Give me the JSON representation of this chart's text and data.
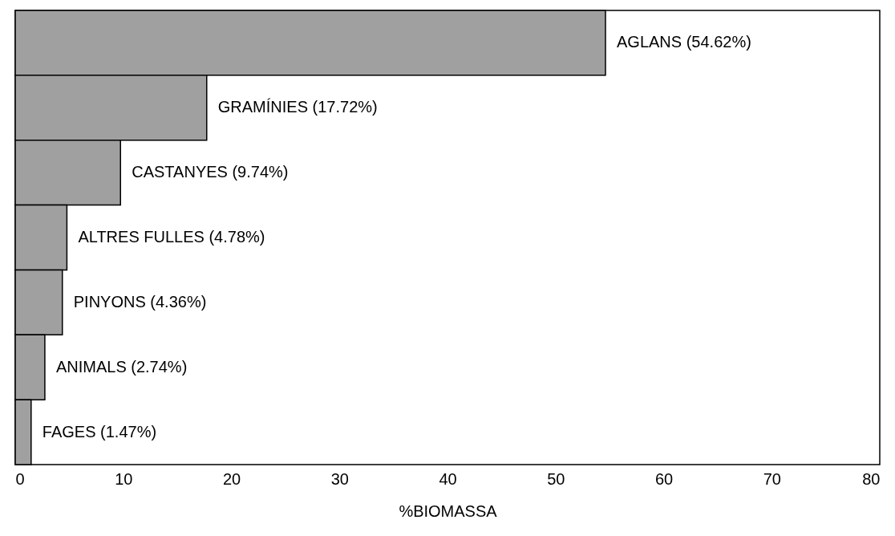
{
  "chart_data": {
    "type": "bar",
    "orientation": "horizontal",
    "xlabel": "%BIOMASSA",
    "categories": [
      "AGLANS (54.62%)",
      "GRAMÍNIES (17.72%)",
      "CASTANYES (9.74%)",
      "ALTRES FULLES (4.78%)",
      "PINYONS (4.36%)",
      "ANIMALS (2.74%)",
      "FAGES (1.47%)"
    ],
    "values": [
      54.62,
      17.72,
      9.74,
      4.78,
      4.36,
      2.74,
      1.47
    ],
    "color": "#a0a0a0",
    "xlim": [
      0,
      80
    ],
    "xticks": [
      0,
      10,
      20,
      30,
      40,
      50,
      60,
      70,
      80
    ],
    "grid": false,
    "tick_labels": "x"
  }
}
